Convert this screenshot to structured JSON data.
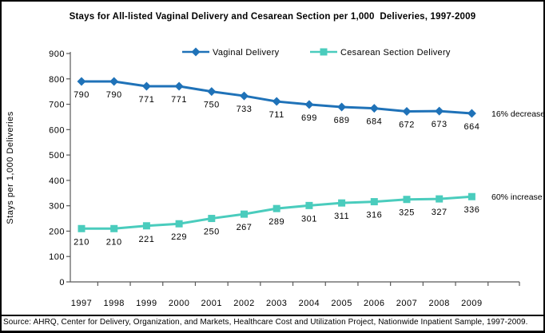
{
  "window": {
    "source_note": "Source: AHRQ, Center for Delivery, Organization, and Markets, Healthcare Cost and Utilization Project, Nationwide Inpatient Sample, 1997-2009."
  },
  "chart_data": {
    "type": "line",
    "title": "Stays for All-listed Vaginal Delivery and Cesarean Section per 1,000  Deliveries, 1997-2009",
    "xlabel": "",
    "ylabel": "Stays per 1,000 Deliveries",
    "ylim": [
      0,
      900
    ],
    "ytick_step": 100,
    "grid": false,
    "legend_position": "top-center",
    "axis_color": "#595959",
    "categories": [
      1997,
      1998,
      1999,
      2000,
      2001,
      2002,
      2003,
      2004,
      2005,
      2006,
      2007,
      2008,
      2009
    ],
    "series": [
      {
        "name": "Vaginal Delivery",
        "marker": "diamond",
        "color": "#1F72B8",
        "values": [
          790,
          790,
          771,
          771,
          750,
          733,
          711,
          699,
          689,
          684,
          672,
          673,
          664
        ],
        "annotation": "16% decrease"
      },
      {
        "name": "Cesarean Section Delivery",
        "marker": "square",
        "color": "#4ACCBD",
        "values": [
          210,
          210,
          221,
          229,
          250,
          267,
          289,
          301,
          311,
          316,
          325,
          327,
          336
        ],
        "annotation": "60% increase"
      }
    ]
  }
}
